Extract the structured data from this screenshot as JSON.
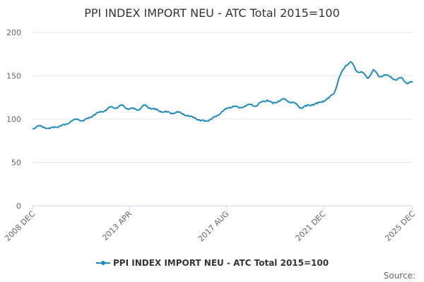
{
  "chart_data": {
    "type": "line",
    "title": "PPI INDEX IMPORT NEU - ATC Total 2015=100",
    "xlabel": "",
    "ylabel": "",
    "ylim": [
      0,
      200
    ],
    "yticks": [
      0,
      50,
      100,
      150,
      200
    ],
    "x_tick_labels": [
      "2008 DEC",
      "2013 APR",
      "2017 AUG",
      "2021 DEC",
      "2025 DEC"
    ],
    "x_tick_values": [
      "2008-12",
      "2013-04",
      "2017-08",
      "2021-12",
      "2025-12"
    ],
    "grid": "horizontal",
    "legend_position": "bottom",
    "color": "#1f8ac0",
    "series": [
      {
        "name": "PPI INDEX IMPORT NEU - ATC Total 2015=100",
        "points": [
          [
            "2008-12",
            89
          ],
          [
            "2009-03",
            92
          ],
          [
            "2009-06",
            91
          ],
          [
            "2009-09",
            89
          ],
          [
            "2009-12",
            91
          ],
          [
            "2010-03",
            92
          ],
          [
            "2010-06",
            94
          ],
          [
            "2010-09",
            98
          ],
          [
            "2010-12",
            100
          ],
          [
            "2011-03",
            98
          ],
          [
            "2011-06",
            101
          ],
          [
            "2011-09",
            105
          ],
          [
            "2011-12",
            108
          ],
          [
            "2012-03",
            110
          ],
          [
            "2012-06",
            114
          ],
          [
            "2012-09",
            113
          ],
          [
            "2012-12",
            116
          ],
          [
            "2013-03",
            112
          ],
          [
            "2013-06",
            112
          ],
          [
            "2013-09",
            111
          ],
          [
            "2013-12",
            116
          ],
          [
            "2014-03",
            113
          ],
          [
            "2014-06",
            111
          ],
          [
            "2014-09",
            109
          ],
          [
            "2014-12",
            108
          ],
          [
            "2015-03",
            107
          ],
          [
            "2015-06",
            108
          ],
          [
            "2015-09",
            106
          ],
          [
            "2015-12",
            103
          ],
          [
            "2016-03",
            102
          ],
          [
            "2016-06",
            98
          ],
          [
            "2016-09",
            98
          ],
          [
            "2016-12",
            100
          ],
          [
            "2017-03",
            104
          ],
          [
            "2017-06",
            109
          ],
          [
            "2017-09",
            113
          ],
          [
            "2017-12",
            115
          ],
          [
            "2018-03",
            113
          ],
          [
            "2018-06",
            115
          ],
          [
            "2018-09",
            117
          ],
          [
            "2018-12",
            115
          ],
          [
            "2019-03",
            120
          ],
          [
            "2019-06",
            122
          ],
          [
            "2019-09",
            118
          ],
          [
            "2019-12",
            121
          ],
          [
            "2020-03",
            123
          ],
          [
            "2020-06",
            120
          ],
          [
            "2020-09",
            118
          ],
          [
            "2020-12",
            113
          ],
          [
            "2021-03",
            115
          ],
          [
            "2021-06",
            117
          ],
          [
            "2021-09",
            118
          ],
          [
            "2021-12",
            121
          ],
          [
            "2022-03",
            124
          ],
          [
            "2022-06",
            131
          ],
          [
            "2022-09",
            150
          ],
          [
            "2022-12",
            162
          ],
          [
            "2023-03",
            166
          ],
          [
            "2023-06",
            155
          ],
          [
            "2023-09",
            154
          ],
          [
            "2023-12",
            147
          ],
          [
            "2024-03",
            157
          ],
          [
            "2024-06",
            149
          ],
          [
            "2024-09",
            151
          ],
          [
            "2024-12",
            149
          ],
          [
            "2025-03",
            145
          ],
          [
            "2025-06",
            148
          ],
          [
            "2025-09",
            141
          ],
          [
            "2025-12",
            143
          ]
        ]
      }
    ]
  },
  "credits": "Source:"
}
